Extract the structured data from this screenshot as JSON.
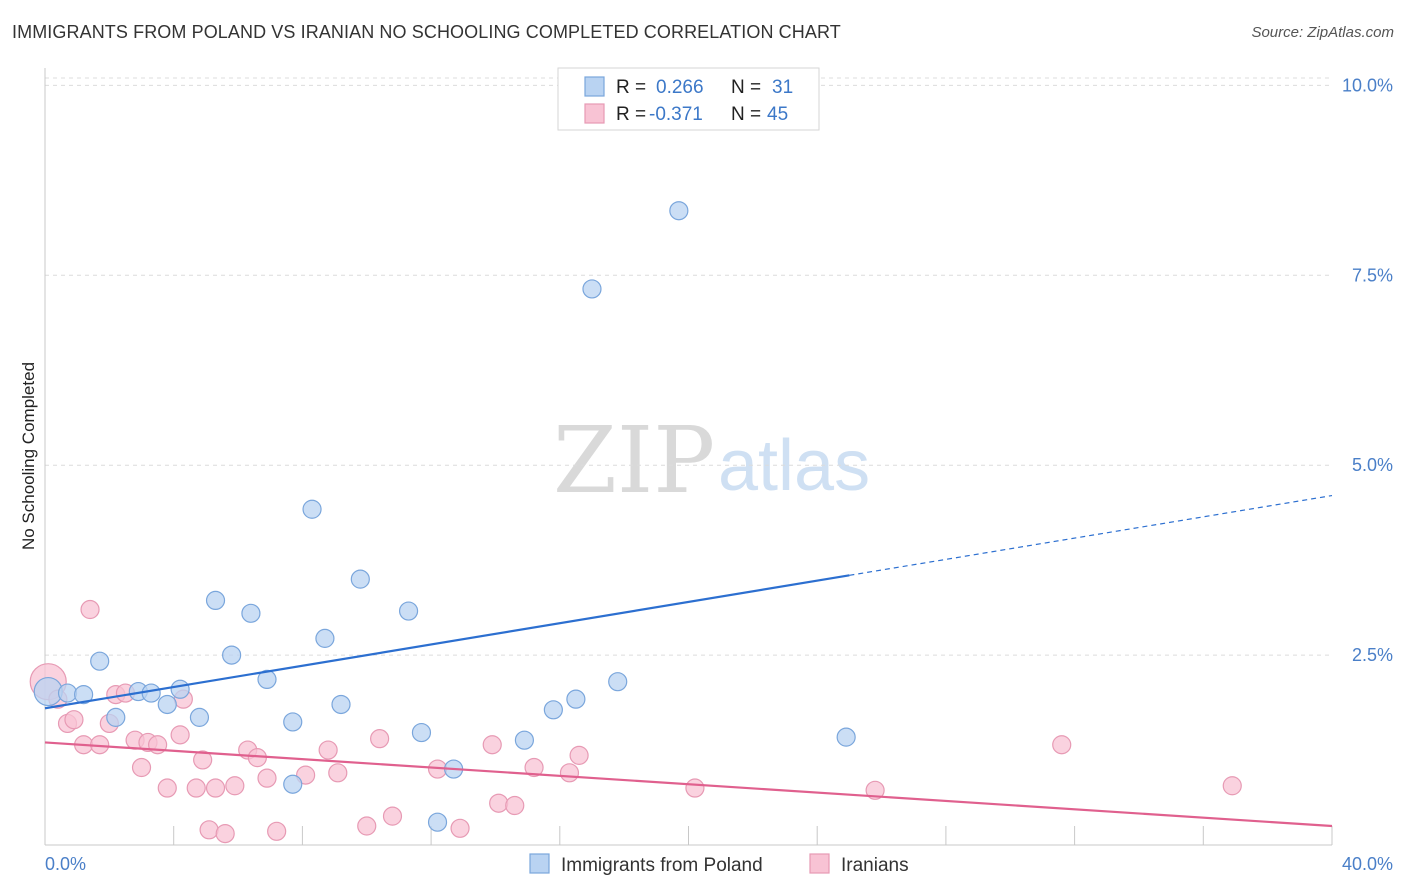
{
  "title": "IMMIGRANTS FROM POLAND VS IRANIAN NO SCHOOLING COMPLETED CORRELATION CHART",
  "source": "Source: ZipAtlas.com",
  "watermark": {
    "part1": "ZIP",
    "part2": "atlas"
  },
  "legend": {
    "rows": [
      {
        "r_label": "R =",
        "r_value": "0.266",
        "n_label": "N =",
        "n_value": "31"
      },
      {
        "r_label": "R =",
        "r_value": "-0.371",
        "n_label": "N =",
        "n_value": "45"
      }
    ]
  },
  "colors": {
    "poland_fill": "#b9d3f2",
    "poland_stroke": "#7aa6dc",
    "poland_line": "#2c6fd0",
    "iran_fill": "#f8c3d4",
    "iran_stroke": "#e79ab4",
    "iran_line": "#e0608e"
  },
  "chart_data": {
    "type": "scatter",
    "title": "IMMIGRANTS FROM POLAND VS IRANIAN NO SCHOOLING COMPLETED CORRELATION CHART",
    "xlabel": "",
    "ylabel": "No Schooling Completed",
    "xlim": [
      0,
      40
    ],
    "ylim": [
      0,
      10.4
    ],
    "x_tick_labels": [
      "0.0%",
      "40.0%"
    ],
    "y_ticks": [
      2.5,
      5.0,
      7.5,
      10.0
    ],
    "y_tick_labels": [
      "2.5%",
      "5.0%",
      "7.5%",
      "10.0%"
    ],
    "series": [
      {
        "name": "Immigrants from Poland",
        "r": 0.266,
        "n": 31,
        "trend": {
          "x0": 0,
          "y0": 1.8,
          "x1": 25,
          "y1": 3.55,
          "dash_x1": 40,
          "dash_y1": 4.6
        },
        "points": [
          [
            0.1,
            2.02,
            14
          ],
          [
            0.7,
            2.0,
            9
          ],
          [
            1.2,
            1.98,
            9
          ],
          [
            1.7,
            2.42,
            9
          ],
          [
            2.2,
            1.68,
            9
          ],
          [
            2.9,
            2.02,
            9
          ],
          [
            3.3,
            2.0,
            9
          ],
          [
            3.8,
            1.85,
            9
          ],
          [
            4.2,
            2.05,
            9
          ],
          [
            4.8,
            1.68,
            9
          ],
          [
            5.3,
            3.22,
            9
          ],
          [
            5.8,
            2.5,
            9
          ],
          [
            6.4,
            3.05,
            9
          ],
          [
            6.9,
            2.18,
            9
          ],
          [
            7.7,
            0.8,
            9
          ],
          [
            7.7,
            1.62,
            9
          ],
          [
            8.3,
            4.42,
            9
          ],
          [
            8.7,
            2.72,
            9
          ],
          [
            9.2,
            1.85,
            9
          ],
          [
            9.8,
            3.5,
            9
          ],
          [
            11.3,
            3.08,
            9
          ],
          [
            11.7,
            1.48,
            9
          ],
          [
            12.2,
            0.3,
            9
          ],
          [
            12.7,
            1.0,
            9
          ],
          [
            14.9,
            1.38,
            9
          ],
          [
            15.8,
            1.78,
            9
          ],
          [
            16.5,
            1.92,
            9
          ],
          [
            17.0,
            7.32,
            9
          ],
          [
            17.8,
            2.15,
            9
          ],
          [
            19.7,
            8.35,
            9
          ],
          [
            24.9,
            1.42,
            9
          ]
        ]
      },
      {
        "name": "Iranians",
        "r": -0.371,
        "n": 45,
        "trend": {
          "x0": 0,
          "y0": 1.35,
          "x1": 40,
          "y1": 0.25
        },
        "points": [
          [
            0.1,
            2.15,
            18
          ],
          [
            0.4,
            1.92,
            9
          ],
          [
            0.7,
            1.6,
            9
          ],
          [
            0.9,
            1.65,
            9
          ],
          [
            1.2,
            1.32,
            9
          ],
          [
            1.4,
            3.1,
            9
          ],
          [
            1.7,
            1.32,
            9
          ],
          [
            2.0,
            1.6,
            9
          ],
          [
            2.2,
            1.98,
            9
          ],
          [
            2.5,
            2.0,
            9
          ],
          [
            2.8,
            1.38,
            9
          ],
          [
            3.0,
            1.02,
            9
          ],
          [
            3.2,
            1.35,
            9
          ],
          [
            3.5,
            1.32,
            9
          ],
          [
            3.8,
            0.75,
            9
          ],
          [
            4.2,
            1.45,
            9
          ],
          [
            4.3,
            1.92,
            9
          ],
          [
            4.7,
            0.75,
            9
          ],
          [
            4.9,
            1.12,
            9
          ],
          [
            5.1,
            0.2,
            9
          ],
          [
            5.3,
            0.75,
            9
          ],
          [
            5.6,
            0.15,
            9
          ],
          [
            5.9,
            0.78,
            9
          ],
          [
            6.3,
            1.25,
            9
          ],
          [
            6.6,
            1.15,
            9
          ],
          [
            6.9,
            0.88,
            9
          ],
          [
            7.2,
            0.18,
            9
          ],
          [
            8.1,
            0.92,
            9
          ],
          [
            8.8,
            1.25,
            9
          ],
          [
            9.1,
            0.95,
            9
          ],
          [
            10.0,
            0.25,
            9
          ],
          [
            10.4,
            1.4,
            9
          ],
          [
            10.8,
            0.38,
            9
          ],
          [
            12.2,
            1.0,
            9
          ],
          [
            12.9,
            0.22,
            9
          ],
          [
            13.9,
            1.32,
            9
          ],
          [
            14.1,
            0.55,
            9
          ],
          [
            14.6,
            0.52,
            9
          ],
          [
            15.2,
            1.02,
            9
          ],
          [
            16.3,
            0.95,
            9
          ],
          [
            16.6,
            1.18,
            9
          ],
          [
            20.2,
            0.75,
            9
          ],
          [
            25.8,
            0.72,
            9
          ],
          [
            31.6,
            1.32,
            9
          ],
          [
            36.9,
            0.78,
            9
          ]
        ]
      }
    ]
  },
  "bottom_legend": {
    "poland": "Immigrants from Poland",
    "iran": "Iranians"
  }
}
